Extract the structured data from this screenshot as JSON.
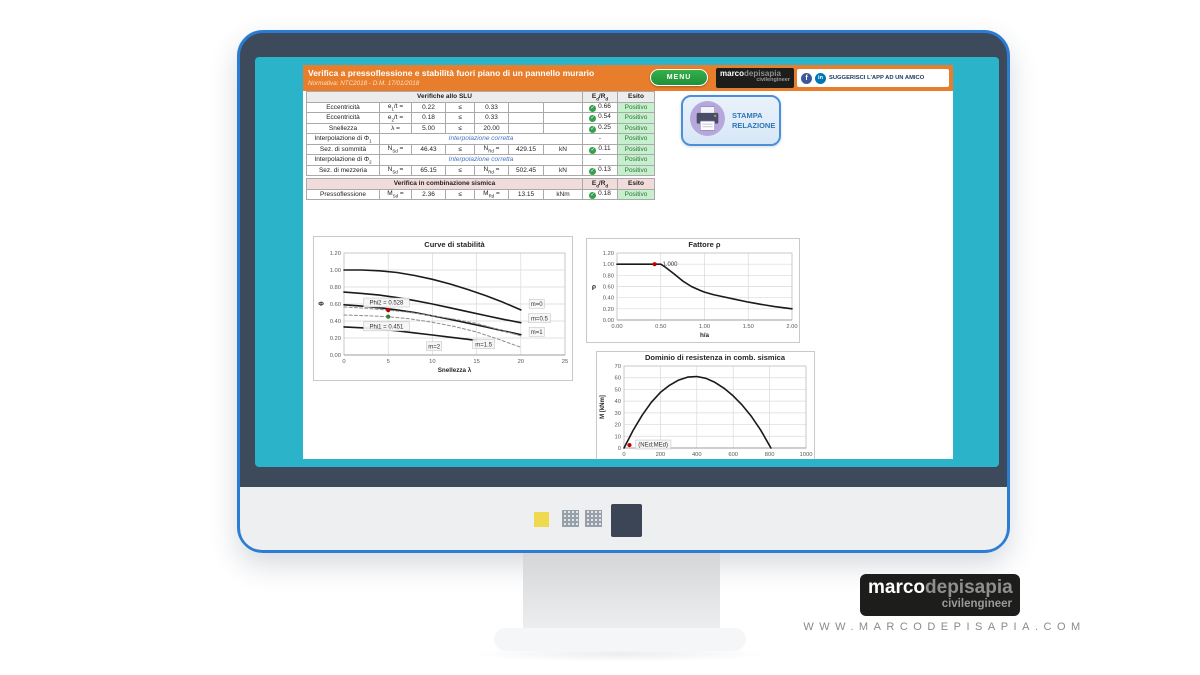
{
  "colors": {
    "accent-orange": "#E87E2B",
    "bezel-teal": "#2BB4C9",
    "frame-slate": "#3D4A5C",
    "frame-outline": "#2B7CD3",
    "menu-green": "#35B04A",
    "esito-green-bg": "#C6EFCE",
    "esito-green-text": "#2E7534",
    "link-blue": "#4472C4",
    "stampa-blue": "#2E75B6",
    "sismica-pink": "#F2DCDB"
  },
  "app": {
    "title": "Verifica a pressoflessione e stabilità fuori piano di un pannello murario",
    "subtitle": "Normativa: NTC2018 - D.M. 17/01/2018",
    "menu_button": "MENU",
    "header_logo": {
      "bold": "marco",
      "light": "depisapia",
      "sub": "civilengineer"
    },
    "facebook_icon": "f",
    "linkedin_icon": "in",
    "suggest_button": "SUGGERISCI L'APP AD UN AMICO",
    "stampa_line1": "STAMPA",
    "stampa_line2": "RELAZIONE"
  },
  "slu_table": {
    "header": "Verifiche allo SLU",
    "col_edrd": "E_d/R_d",
    "col_esito": "Esito",
    "rows": [
      {
        "label": "Eccentricità",
        "c1": "e_1/t =",
        "c2": "0.22",
        "c3": "≤",
        "c4": "0.33",
        "c5": "",
        "c6": "",
        "edrd": "0.66",
        "check": true,
        "esito": "Positivo"
      },
      {
        "label": "Eccentricità",
        "c1": "e_2/t =",
        "c2": "0.18",
        "c3": "≤",
        "c4": "0.33",
        "c5": "",
        "c6": "",
        "edrd": "0.54",
        "check": true,
        "esito": "Positivo"
      },
      {
        "label": "Snellezza",
        "c1": "λ =",
        "c2": "5.00",
        "c3": "≤",
        "c4": "20.00",
        "c5": "",
        "c6": "",
        "edrd": "0.25",
        "check": true,
        "esito": "Positivo"
      },
      {
        "label": "Interpolazione di Φ_1",
        "span": "Interpolazione corretta",
        "edrd": "-",
        "check": false,
        "esito": "Positivo"
      },
      {
        "label": "Sez. di sommità",
        "c1": "N_Sd =",
        "c2": "46.43",
        "c3": "≤",
        "c4": "N_Rd =",
        "c5": "429.15",
        "c6": "kN",
        "edrd": "0.11",
        "check": true,
        "esito": "Positivo"
      },
      {
        "label": "Interpolazione di Φ_2",
        "span": "Interpolazione corretta",
        "edrd": "-",
        "check": false,
        "esito": "Positivo"
      },
      {
        "label": "Sez. di mezzeria",
        "c1": "N_Sd =",
        "c2": "65.15",
        "c3": "≤",
        "c4": "N_Rd =",
        "c5": "502.45",
        "c6": "kN",
        "edrd": "0.13",
        "check": true,
        "esito": "Positivo"
      }
    ]
  },
  "sismica_table": {
    "header": "Verifica in combinazione sismica",
    "col_edrd": "E_d/R_d",
    "col_esito": "Esito",
    "rows": [
      {
        "label": "Pressoflessione",
        "c1": "M_Sd =",
        "c2": "2.36",
        "c3": "≤",
        "c4": "M_Rd =",
        "c5": "13.15",
        "c6": "kNm",
        "edrd": "0.18",
        "check": true,
        "esito": "Positivo"
      }
    ]
  },
  "chart_data": [
    {
      "type": "line",
      "title": "Curve di stabilità",
      "xlabel": "Snellezza λ",
      "ylabel": "Φ",
      "xlim": [
        0,
        25
      ],
      "ylim": [
        0,
        1.2
      ],
      "xticks": [
        0,
        5,
        10,
        15,
        20,
        25
      ],
      "xtick_labels": [
        "0",
        "5",
        "10",
        "15",
        "20",
        "25"
      ],
      "yticks": [
        0,
        0.2,
        0.4,
        0.6,
        0.8,
        1.0,
        1.2
      ],
      "ytick_labels": [
        "0.00",
        "0.20",
        "0.40",
        "0.60",
        "0.80",
        "1.00",
        "1.20"
      ],
      "grid": true,
      "legend": "inline-labels",
      "series": [
        {
          "name": "m=0",
          "style": "solid",
          "color": "#1a1a1a",
          "width": 1.6,
          "points": [
            [
              0,
              1.0
            ],
            [
              2,
              1.0
            ],
            [
              4,
              0.99
            ],
            [
              6,
              0.97
            ],
            [
              8,
              0.935
            ],
            [
              10,
              0.89
            ],
            [
              12,
              0.835
            ],
            [
              14,
              0.77
            ],
            [
              16,
              0.7
            ],
            [
              18,
              0.62
            ],
            [
              20,
              0.53
            ]
          ]
        },
        {
          "name": "m=0.5",
          "style": "solid",
          "color": "#1a1a1a",
          "width": 1.6,
          "points": [
            [
              0,
              0.74
            ],
            [
              2,
              0.725
            ],
            [
              4,
              0.705
            ],
            [
              6,
              0.675
            ],
            [
              8,
              0.64
            ],
            [
              10,
              0.6
            ],
            [
              12,
              0.555
            ],
            [
              14,
              0.51
            ],
            [
              16,
              0.465
            ],
            [
              18,
              0.42
            ],
            [
              20,
              0.38
            ]
          ]
        },
        {
          "name": "m=1",
          "style": "solid",
          "color": "#1a1a1a",
          "width": 1.6,
          "points": [
            [
              0,
              0.59
            ],
            [
              2,
              0.575
            ],
            [
              4,
              0.555
            ],
            [
              6,
              0.53
            ],
            [
              8,
              0.5
            ],
            [
              10,
              0.46
            ],
            [
              12,
              0.42
            ],
            [
              14,
              0.375
            ],
            [
              16,
              0.33
            ],
            [
              18,
              0.285
            ],
            [
              20,
              0.24
            ]
          ]
        },
        {
          "name": "m=2",
          "style": "solid",
          "color": "#1a1a1a",
          "width": 1.6,
          "points": [
            [
              0,
              0.33
            ],
            [
              2,
              0.32
            ],
            [
              4,
              0.305
            ],
            [
              6,
              0.285
            ],
            [
              8,
              0.26
            ],
            [
              10,
              0.235
            ],
            [
              12,
              0.21
            ],
            [
              14,
              0.185
            ],
            [
              15,
              0.17
            ]
          ]
        },
        {
          "name": "interpolata-Phi2",
          "style": "dashed",
          "color": "#8c8c8c",
          "width": 1,
          "points": [
            [
              0,
              0.565
            ],
            [
              2.5,
              0.55
            ],
            [
              5,
              0.528
            ],
            [
              7.5,
              0.5
            ],
            [
              10,
              0.462
            ],
            [
              12.5,
              0.42
            ],
            [
              15,
              0.372
            ],
            [
              17.5,
              0.3
            ],
            [
              20,
              0.225
            ]
          ]
        },
        {
          "name": "m=1.5",
          "style": "dashed",
          "color": "#8c8c8c",
          "width": 1,
          "points": [
            [
              0,
              0.47
            ],
            [
              2.5,
              0.462
            ],
            [
              5,
              0.451
            ],
            [
              7.5,
              0.425
            ],
            [
              10,
              0.385
            ],
            [
              12.5,
              0.335
            ],
            [
              15,
              0.27
            ],
            [
              17.5,
              0.185
            ],
            [
              20,
              0.09
            ]
          ]
        }
      ],
      "markers": [
        {
          "x": 5,
          "y": 0.528,
          "color": "#c00000"
        },
        {
          "x": 5,
          "y": 0.451,
          "color": "#2e7d32"
        }
      ],
      "labels": [
        {
          "text": "Phi2 = 0.528",
          "x": 4.8,
          "y": 0.615,
          "box": true
        },
        {
          "text": "Phi1 = 0.451",
          "x": 4.8,
          "y": 0.335,
          "box": true
        },
        {
          "text": "m=0",
          "x": 21.8,
          "y": 0.6,
          "box": true
        },
        {
          "text": "m=0.5",
          "x": 22.1,
          "y": 0.43,
          "box": true
        },
        {
          "text": "m=1",
          "x": 21.8,
          "y": 0.27,
          "box": true
        },
        {
          "text": "m=1.5",
          "x": 15.8,
          "y": 0.125,
          "box": true
        },
        {
          "text": "m=2",
          "x": 10.2,
          "y": 0.1,
          "box": true
        }
      ]
    },
    {
      "type": "line",
      "title": "Fattore ρ",
      "xlabel": "h/a",
      "ylabel": "ρ",
      "xlim": [
        0,
        2
      ],
      "ylim": [
        0,
        1.2
      ],
      "xticks": [
        0,
        0.5,
        1.0,
        1.5,
        2.0
      ],
      "xtick_labels": [
        "0.00",
        "0.50",
        "1.00",
        "1.50",
        "2.00"
      ],
      "yticks": [
        0,
        0.2,
        0.4,
        0.6,
        0.8,
        1.0,
        1.2
      ],
      "ytick_labels": [
        "0.00",
        "0.20",
        "0.40",
        "0.60",
        "0.80",
        "1.00",
        "1.20"
      ],
      "grid": true,
      "series": [
        {
          "name": "rho",
          "style": "solid",
          "color": "#1a1a1a",
          "width": 1.6,
          "points": [
            [
              0,
              1.0
            ],
            [
              0.5,
              1.0
            ],
            [
              0.55,
              0.95
            ],
            [
              0.65,
              0.83
            ],
            [
              0.75,
              0.7
            ],
            [
              0.85,
              0.6
            ],
            [
              0.95,
              0.53
            ],
            [
              1.0,
              0.5
            ],
            [
              1.1,
              0.455
            ],
            [
              1.2,
              0.42
            ],
            [
              1.35,
              0.37
            ],
            [
              1.5,
              0.32
            ],
            [
              1.65,
              0.28
            ],
            [
              1.8,
              0.24
            ],
            [
              2.0,
              0.2
            ]
          ]
        }
      ],
      "markers": [
        {
          "x": 0.43,
          "y": 1.0,
          "color": "#c00000"
        }
      ],
      "labels": [
        {
          "text": "1.000",
          "x": 0.52,
          "y": 1.0,
          "box": false
        }
      ]
    },
    {
      "type": "line",
      "title": "Dominio di resistenza in comb. sismica",
      "xlabel": "",
      "ylabel": "M [kNm]",
      "xlim": [
        0,
        1000
      ],
      "ylim": [
        0,
        70
      ],
      "xticks": [
        0,
        200,
        400,
        600,
        800,
        1000
      ],
      "xtick_labels": [
        "0",
        "200",
        "400",
        "600",
        "800",
        "1000"
      ],
      "yticks": [
        0,
        10,
        20,
        30,
        40,
        50,
        60,
        70
      ],
      "ytick_labels": [
        "0",
        "10",
        "20",
        "30",
        "40",
        "50",
        "60",
        "70"
      ],
      "grid": true,
      "series": [
        {
          "name": "dominio-M-N",
          "style": "solid",
          "color": "#1a1a1a",
          "width": 1.6,
          "points": [
            [
              0,
              0
            ],
            [
              50,
              15
            ],
            [
              100,
              28
            ],
            [
              150,
              39
            ],
            [
              200,
              47.5
            ],
            [
              250,
              53.5
            ],
            [
              300,
              58
            ],
            [
              350,
              60.5
            ],
            [
              400,
              61
            ],
            [
              450,
              59.5
            ],
            [
              500,
              56
            ],
            [
              550,
              51
            ],
            [
              600,
              44.5
            ],
            [
              650,
              36.5
            ],
            [
              700,
              27
            ],
            [
              750,
              15.5
            ],
            [
              800,
              2
            ],
            [
              807,
              0
            ]
          ]
        }
      ],
      "markers": [
        {
          "x": 30,
          "y": 2.5,
          "color": "#c00000"
        }
      ],
      "labels": [
        {
          "text": "(NEd;MEd)",
          "x": 160,
          "y": 2.8,
          "box": true
        }
      ]
    }
  ],
  "footer": {
    "brand_bold": "marco",
    "brand_light": "depisapia",
    "brand_sub": "civilengineer",
    "website": "WWW.MARCODEPISAPIA.COM"
  }
}
